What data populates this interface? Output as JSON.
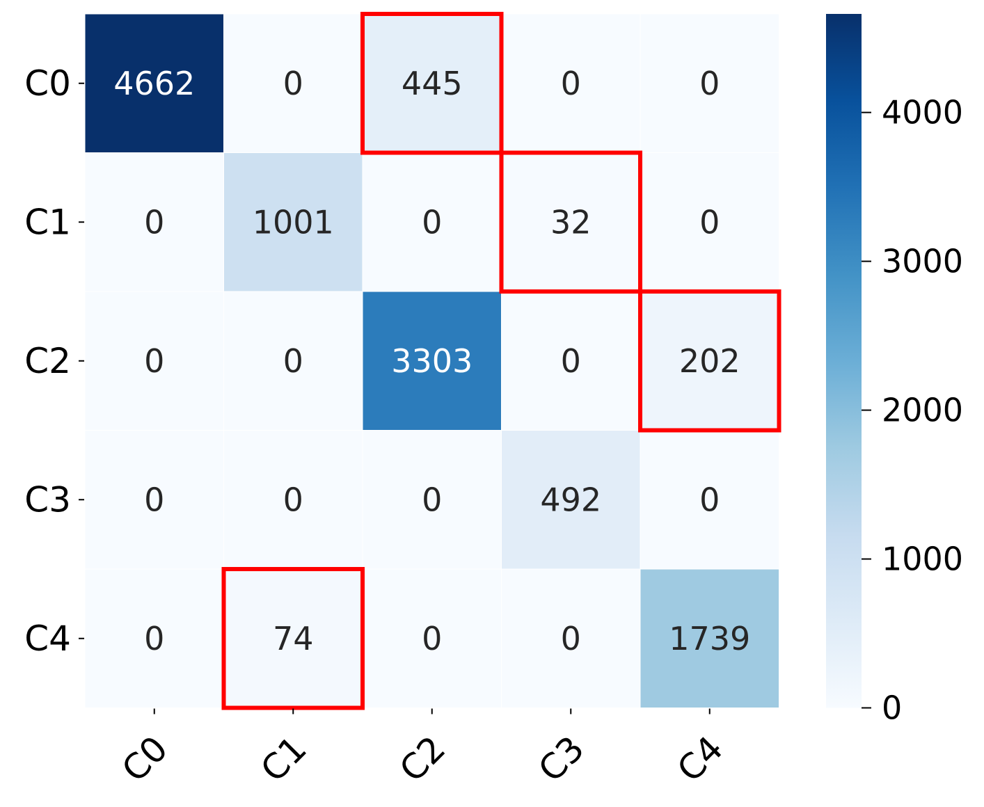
{
  "chart_data": {
    "type": "heatmap",
    "title": "",
    "xlabel": "",
    "ylabel": "",
    "x_labels": [
      "C0",
      "C1",
      "C2",
      "C3",
      "C4"
    ],
    "y_labels": [
      "C0",
      "C1",
      "C2",
      "C3",
      "C4"
    ],
    "matrix": [
      [
        4662,
        0,
        445,
        0,
        0
      ],
      [
        0,
        1001,
        0,
        32,
        0
      ],
      [
        0,
        0,
        3303,
        0,
        202
      ],
      [
        0,
        0,
        0,
        492,
        0
      ],
      [
        0,
        74,
        0,
        0,
        1739
      ]
    ],
    "colormap": "Blues",
    "colorbar": {
      "range": [
        0,
        4662
      ],
      "ticks": [
        0,
        1000,
        2000,
        3000,
        4000
      ],
      "tick_labels": [
        "0",
        "1000",
        "2000",
        "3000",
        "4000"
      ]
    },
    "highlighted_cells": [
      {
        "row": 0,
        "col": 2
      },
      {
        "row": 1,
        "col": 3
      },
      {
        "row": 2,
        "col": 4
      },
      {
        "row": 4,
        "col": 1
      }
    ],
    "highlight_color": "#ff0000",
    "x_tick_rotation": 45
  }
}
